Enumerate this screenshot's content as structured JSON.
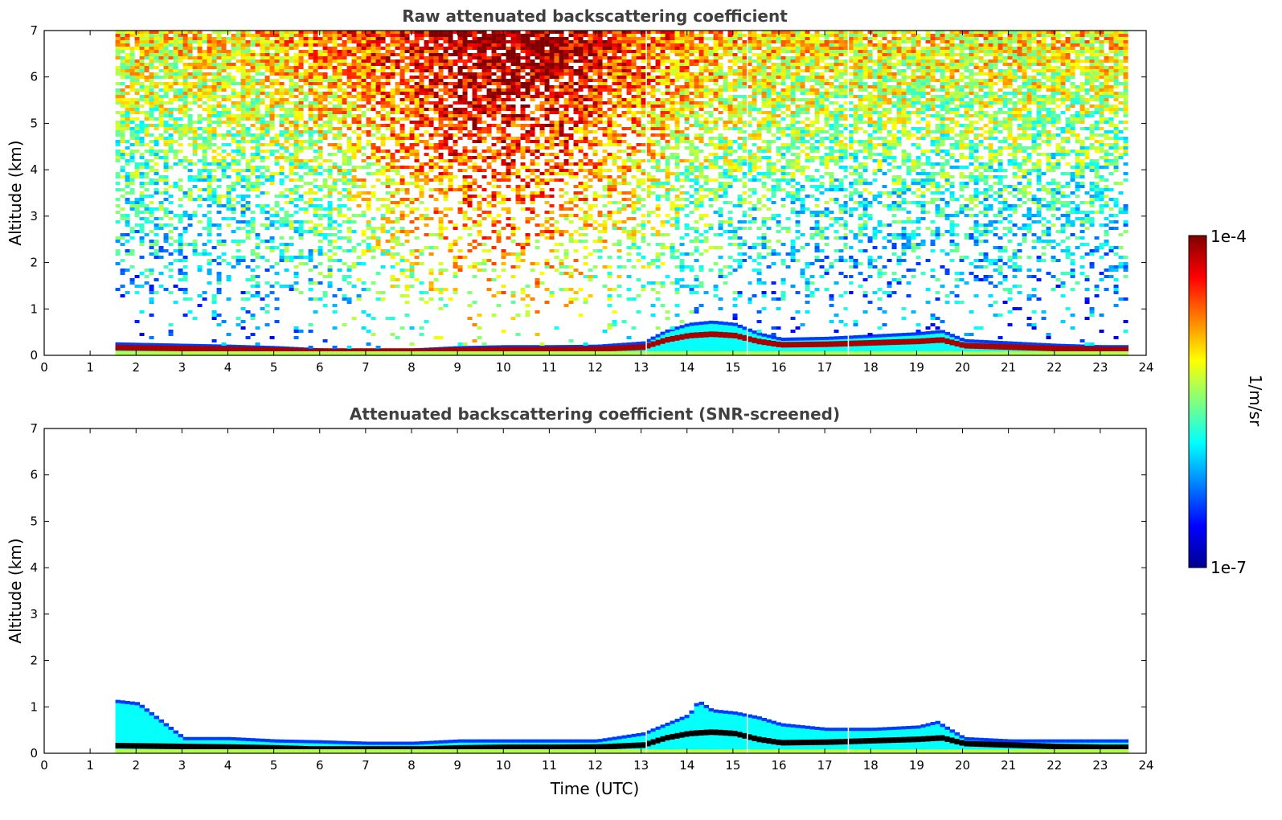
{
  "colors": {
    "jet": [
      "#00008f",
      "#0000ff",
      "#0080ff",
      "#00ffff",
      "#80ff80",
      "#ffff00",
      "#ff8000",
      "#ff0000",
      "#800000"
    ],
    "screened_core": "#000000"
  },
  "colorbar": {
    "label": "1/m/sr",
    "top_label": "1e-4",
    "bottom_label": "1e-7",
    "range": [
      "1e-7",
      "1e-4"
    ],
    "colormap": "jet",
    "orientation": "vertical",
    "placement": "right"
  },
  "chart_data": [
    {
      "type": "heatmap",
      "title": "Raw attenuated backscattering coefficient",
      "xlabel": "",
      "ylabel": "Altitude (km)",
      "xlim": [
        0,
        24
      ],
      "ylim": [
        0,
        7
      ],
      "xticks": [
        "0",
        "1",
        "2",
        "3",
        "4",
        "5",
        "6",
        "7",
        "8",
        "9",
        "10",
        "11",
        "12",
        "13",
        "14",
        "15",
        "16",
        "17",
        "18",
        "19",
        "20",
        "21",
        "22",
        "23",
        "24"
      ],
      "yticks": [
        "0",
        "1",
        "2",
        "3",
        "4",
        "5",
        "6",
        "7"
      ],
      "data_time_range": [
        1.55,
        23.55
      ],
      "boundary_layer_top_km": {
        "time": [
          1.55,
          2,
          3,
          4,
          5,
          6,
          7,
          8,
          9,
          10,
          11,
          12,
          13,
          13.5,
          14,
          14.5,
          15,
          15.5,
          16,
          17,
          18,
          19,
          19.5,
          20,
          21,
          22,
          23,
          23.55
        ],
        "altitude": [
          0.28,
          0.27,
          0.25,
          0.23,
          0.2,
          0.15,
          0.12,
          0.15,
          0.2,
          0.22,
          0.22,
          0.23,
          0.3,
          0.55,
          0.7,
          0.75,
          0.7,
          0.5,
          0.38,
          0.4,
          0.45,
          0.5,
          0.55,
          0.35,
          0.3,
          0.25,
          0.22,
          0.22
        ]
      },
      "noise_dominant_region": "upper altitudes high values (orange-red) 7–12 UTC",
      "gaps_utc": [
        13.1,
        15.3,
        17.5
      ]
    },
    {
      "type": "heatmap",
      "title": "Attenuated backscattering coefficient (SNR-screened)",
      "xlabel": "Time (UTC)",
      "ylabel": "Altitude (km)",
      "xlim": [
        0,
        24
      ],
      "ylim": [
        0,
        7
      ],
      "xticks": [
        "0",
        "1",
        "2",
        "3",
        "4",
        "5",
        "6",
        "7",
        "8",
        "9",
        "10",
        "11",
        "12",
        "13",
        "14",
        "15",
        "16",
        "17",
        "18",
        "19",
        "20",
        "21",
        "22",
        "23",
        "24"
      ],
      "yticks": [
        "0",
        "1",
        "2",
        "3",
        "4",
        "5",
        "6",
        "7"
      ],
      "data_time_range": [
        1.55,
        23.55
      ],
      "signal_top_km": {
        "time": [
          1.55,
          2,
          3,
          4,
          5,
          6,
          7,
          8,
          9,
          10,
          11,
          12,
          13,
          13.5,
          14,
          14.2,
          14.5,
          15,
          15.5,
          16,
          17,
          18,
          19,
          19.4,
          20,
          21,
          22,
          23,
          23.55
        ],
        "altitude": [
          1.15,
          1.1,
          0.35,
          0.35,
          0.3,
          0.28,
          0.25,
          0.25,
          0.3,
          0.3,
          0.3,
          0.3,
          0.45,
          0.65,
          0.85,
          1.15,
          0.95,
          0.9,
          0.8,
          0.65,
          0.55,
          0.55,
          0.6,
          0.7,
          0.35,
          0.3,
          0.3,
          0.3,
          0.3
        ]
      }
    }
  ]
}
